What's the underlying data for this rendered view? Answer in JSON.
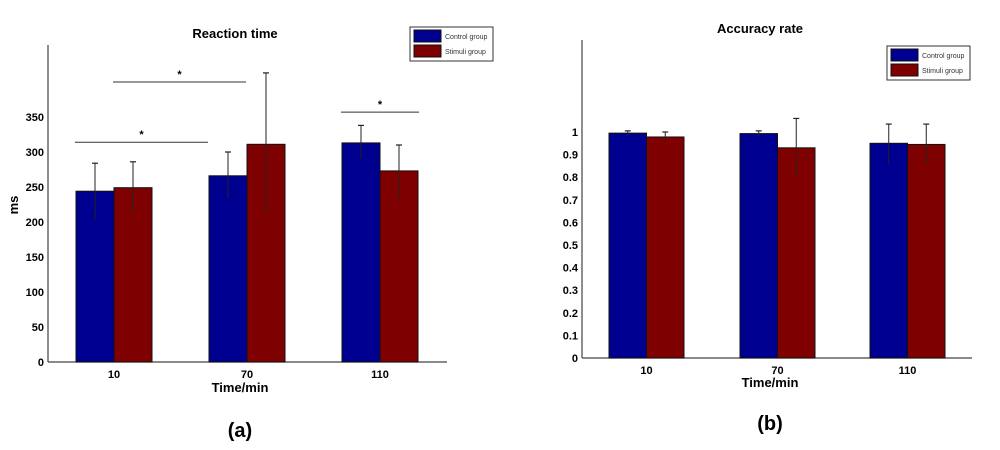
{
  "colors": {
    "control": "#000090",
    "stimuli": "#7f0000"
  },
  "chart_data": [
    {
      "type": "bar",
      "title": "Reaction time",
      "xlabel": "Time/min",
      "ylabel": "ms",
      "panel_label": "(a)",
      "categories": [
        "10",
        "70",
        "110"
      ],
      "ylim": [
        0,
        350
      ],
      "yticks": [
        0,
        50,
        100,
        150,
        200,
        250,
        300,
        350
      ],
      "legend": "top-right",
      "series": [
        {
          "name": "Control group",
          "values": [
            244,
            266,
            313
          ],
          "err_low": [
            203,
            234,
            290
          ],
          "err_high": [
            284,
            300,
            338
          ]
        },
        {
          "name": "Stimuli group",
          "values": [
            249,
            311,
            273
          ],
          "err_low": [
            213,
            213,
            234
          ],
          "err_high": [
            286,
            413,
            310
          ]
        }
      ],
      "significance": [
        {
          "label": "*",
          "from": "10 Control",
          "to": "70 Control",
          "level": 314
        },
        {
          "label": "*",
          "from": "10 Stimuli",
          "to": "70 Stimuli",
          "level": 400
        },
        {
          "label": "*",
          "from": "110 Control",
          "to": "110 Stimuli",
          "level": 357
        }
      ]
    },
    {
      "type": "bar",
      "title": "Accuracy rate",
      "xlabel": "Time/min",
      "ylabel": "",
      "panel_label": "(b)",
      "categories": [
        "10",
        "70",
        "110"
      ],
      "ylim": [
        0,
        1
      ],
      "yticks": [
        0,
        0.1,
        0.2,
        0.3,
        0.4,
        0.5,
        0.6,
        0.7,
        0.8,
        0.9,
        1
      ],
      "legend": "top-right",
      "series": [
        {
          "name": "Control group",
          "values": [
            0.995,
            0.993,
            0.95
          ],
          "err_low": [
            0.985,
            0.98,
            0.855
          ],
          "err_high": [
            1.005,
            1.005,
            1.035
          ]
        },
        {
          "name": "Stimuli group",
          "values": [
            0.978,
            0.93,
            0.945
          ],
          "err_low": [
            0.955,
            0.8,
            0.855
          ],
          "err_high": [
            1.0,
            1.06,
            1.035
          ]
        }
      ],
      "significance": []
    }
  ]
}
